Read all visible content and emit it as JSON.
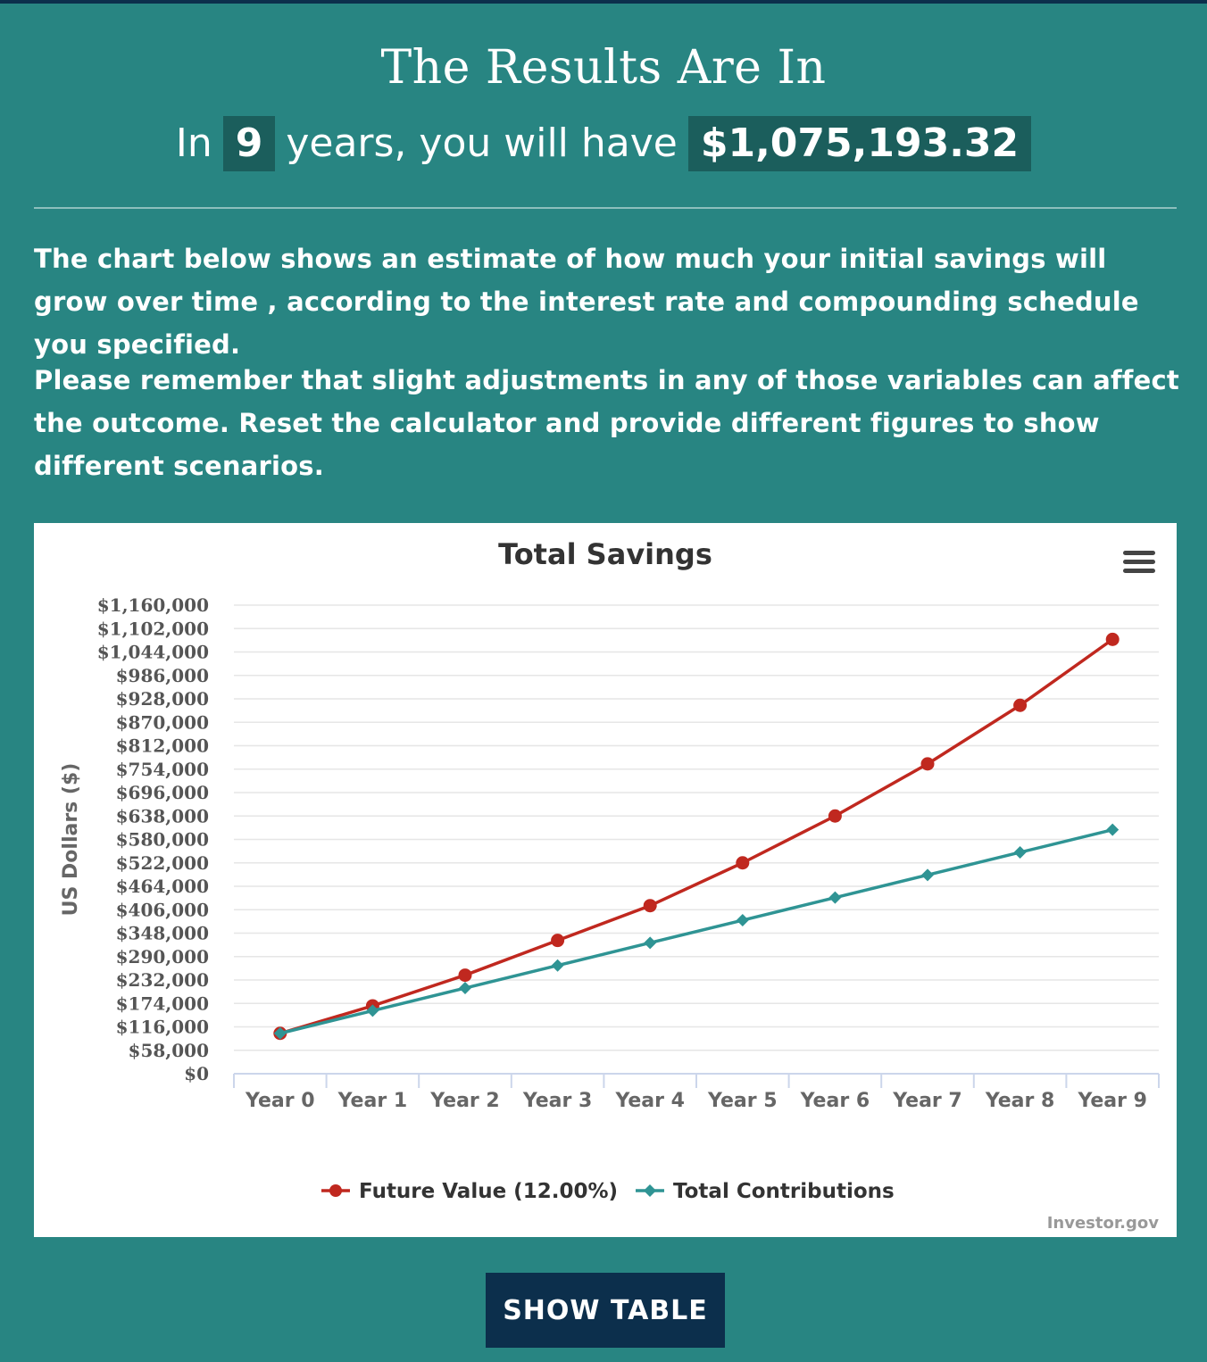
{
  "header": {
    "title": "The Results Are In",
    "prefix": "In",
    "years": "9",
    "middle": "years, you will have",
    "amount": "$1,075,193.32"
  },
  "description": {
    "p1": "The chart below shows an estimate of how much your initial savings will grow over time , according to the interest rate and compounding schedule you specified.",
    "p2": "Please remember that slight adjustments in any of those variables can affect the outcome. Reset the calculator and provide different figures to show different scenarios."
  },
  "actions": {
    "show_table": "SHOW TABLE"
  },
  "colors": {
    "background": "#288582",
    "future_value": "#c0281f",
    "contributions": "#2f9494",
    "button": "#0c2f4c"
  },
  "chart_data": {
    "type": "line",
    "title": "Total Savings",
    "ylabel": "US Dollars ($)",
    "xlabel": "",
    "categories": [
      "Year 0",
      "Year 1",
      "Year 2",
      "Year 3",
      "Year 4",
      "Year 5",
      "Year 6",
      "Year 7",
      "Year 8",
      "Year 9"
    ],
    "ylim": [
      0,
      1160000
    ],
    "yticks": [
      "$0",
      "$58,000",
      "$116,000",
      "$174,000",
      "$232,000",
      "$290,000",
      "$348,000",
      "$406,000",
      "$464,000",
      "$522,000",
      "$580,000",
      "$638,000",
      "$696,000",
      "$754,000",
      "$812,000",
      "$870,000",
      "$928,000",
      "$986,000",
      "$1,044,000",
      "$1,102,000",
      "$1,160,000"
    ],
    "grid": true,
    "legend_position": "bottom",
    "credits": "Investor.gov",
    "series": [
      {
        "name": "Future Value (12.00%)",
        "color": "#c0281f",
        "marker": "circle",
        "values": [
          100000,
          168000,
          244000,
          330000,
          416000,
          522000,
          638000,
          767000,
          912000,
          1075193.32
        ]
      },
      {
        "name": "Total Contributions",
        "color": "#2f9494",
        "marker": "diamond",
        "values": [
          100000,
          156000,
          212000,
          268000,
          324000,
          380000,
          436000,
          492000,
          548000,
          604000
        ]
      }
    ]
  }
}
